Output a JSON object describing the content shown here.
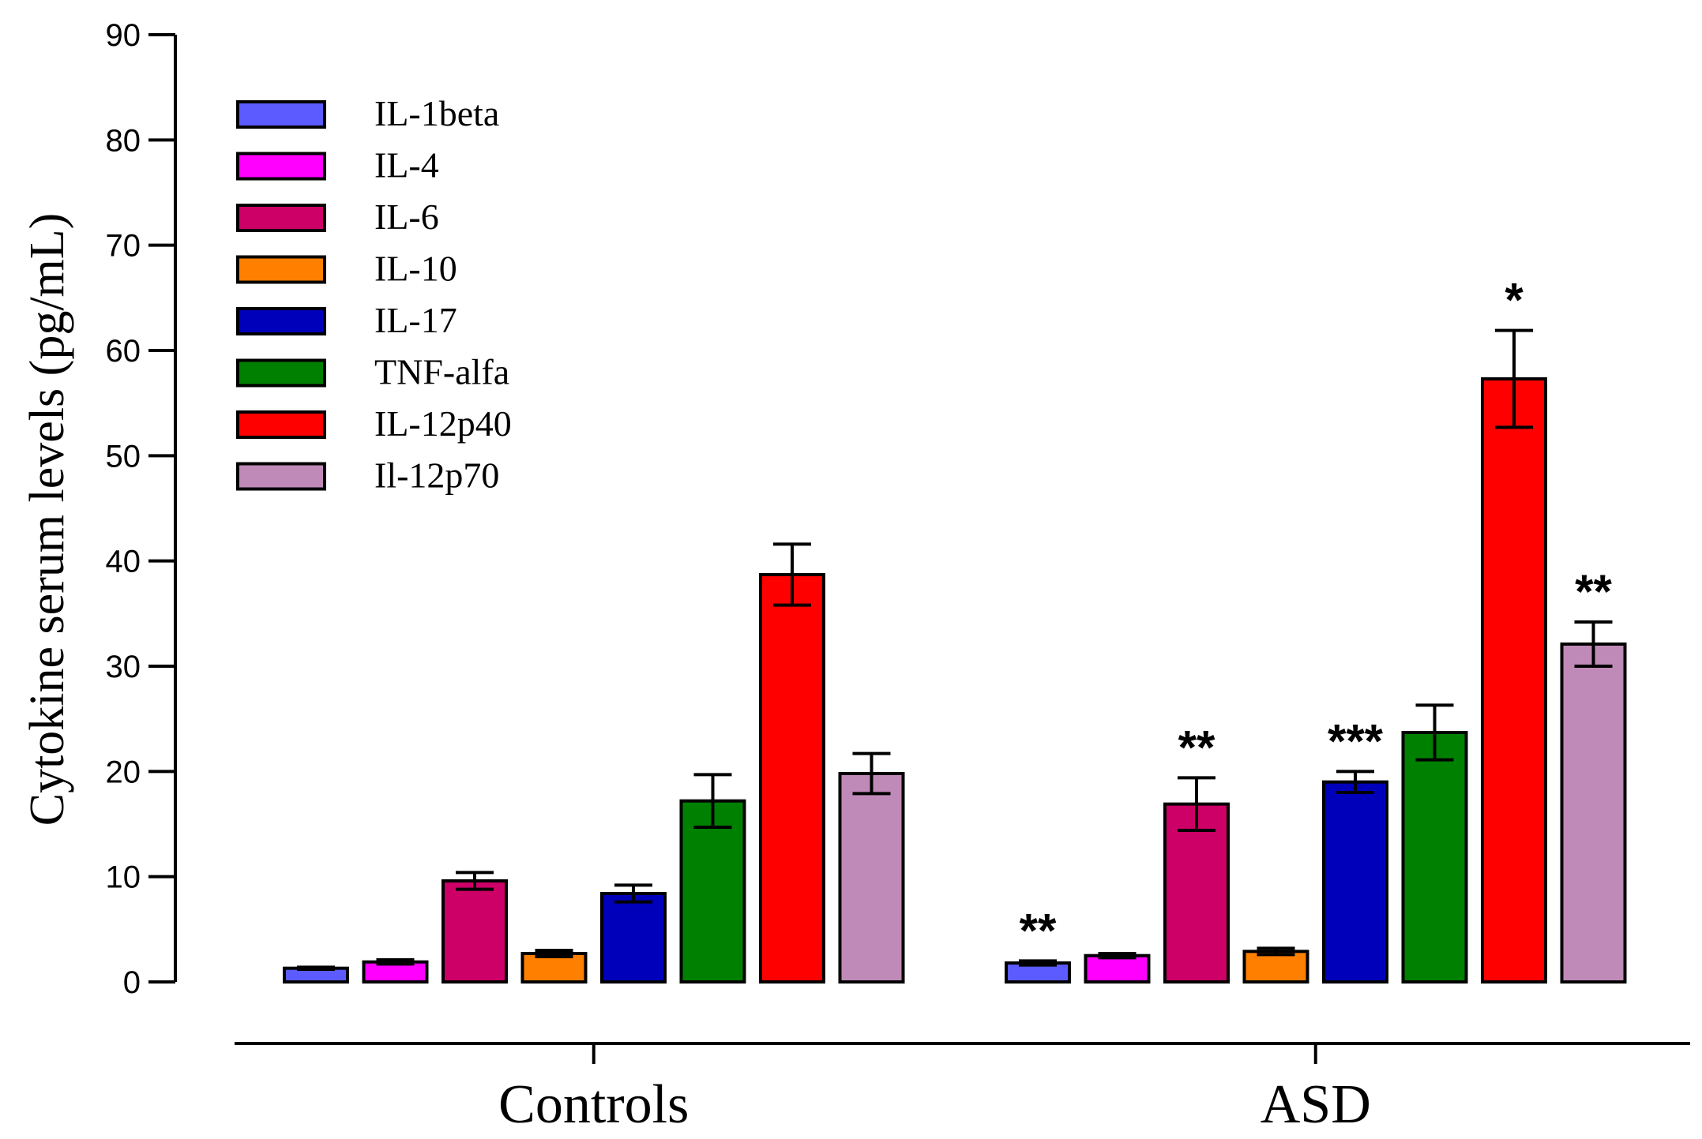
{
  "chart_data": {
    "type": "bar",
    "title": "",
    "xlabel": "",
    "ylabel": "Cytokine  serum levels (pg/mL)",
    "ylim": [
      0,
      90
    ],
    "yticks": [
      0,
      10,
      20,
      30,
      40,
      50,
      60,
      70,
      80,
      90
    ],
    "categories": [
      "Controls",
      "ASD"
    ],
    "legend_position": "top-left",
    "series": [
      {
        "name": "IL-1beta",
        "color": "#5b5bff",
        "values": [
          1.3,
          1.8
        ],
        "errors": [
          0.1,
          0.2
        ],
        "annotations": [
          "",
          "**"
        ]
      },
      {
        "name": "IL-4",
        "color": "#ff00ff",
        "values": [
          1.9,
          2.5
        ],
        "errors": [
          0.2,
          0.2
        ],
        "annotations": [
          "",
          ""
        ]
      },
      {
        "name": "IL-6",
        "color": "#cc0066",
        "values": [
          9.6,
          16.9
        ],
        "errors": [
          0.8,
          2.5
        ],
        "annotations": [
          "",
          "**"
        ]
      },
      {
        "name": "IL-10",
        "color": "#ff8000",
        "values": [
          2.7,
          2.9
        ],
        "errors": [
          0.3,
          0.3
        ],
        "annotations": [
          "",
          ""
        ]
      },
      {
        "name": "IL-17",
        "color": "#0000bb",
        "values": [
          8.4,
          19.0
        ],
        "errors": [
          0.8,
          1.0
        ],
        "annotations": [
          "",
          "***"
        ]
      },
      {
        "name": "TNF-alfa",
        "color": "#008000",
        "values": [
          17.2,
          23.7
        ],
        "errors": [
          2.5,
          2.6
        ],
        "annotations": [
          "",
          ""
        ]
      },
      {
        "name": "IL-12p40",
        "color": "#ff0000",
        "values": [
          38.7,
          57.3
        ],
        "errors": [
          2.9,
          4.6
        ],
        "annotations": [
          "",
          "*"
        ]
      },
      {
        "name": "Il-12p70",
        "color": "#c08ab8",
        "values": [
          19.8,
          32.1
        ],
        "errors": [
          1.9,
          2.1
        ],
        "annotations": [
          "",
          "**"
        ]
      }
    ]
  }
}
